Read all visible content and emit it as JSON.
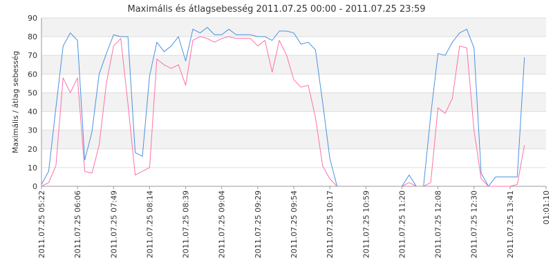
{
  "chart_data": {
    "type": "line",
    "title": "Maximális és átlagsebesség 2011.07.25 00:00 - 2011.07.25 23:59",
    "ylabel": "Maximális / átlag sebesség",
    "xlabel": "",
    "ylim": [
      0,
      90
    ],
    "yticks": [
      0,
      10,
      20,
      30,
      40,
      50,
      60,
      70,
      80,
      90
    ],
    "grid": "horizontal bands",
    "colors": {
      "max": "#4a90e2",
      "avg": "#ff6fa8",
      "band": "#f2f2f2",
      "grid": "#dddddd",
      "axis": "#999999"
    },
    "x_tick_labels": [
      "2011.07.25 05:22",
      "2011.07.25 06:06",
      "2011.07.25 07:49",
      "2011.07.25 08:14",
      "2011.07.25 08:39",
      "2011.07.25 09:04",
      "2011.07.25 09:29",
      "2011.07.25 09:54",
      "2011.07.25 10:17",
      "2011.07.25 10:59",
      "2011.07.25 11:20",
      "2011.07.25 12:08",
      "2011.07.25 12:30",
      "2011.07.25 13:41",
      "01:01:10"
    ],
    "series": [
      {
        "key": "max",
        "points": [
          [
            0,
            1
          ],
          [
            0.2,
            8
          ],
          [
            0.4,
            42
          ],
          [
            0.6,
            75
          ],
          [
            0.8,
            82
          ],
          [
            1.0,
            78
          ],
          [
            1.2,
            14
          ],
          [
            1.4,
            29
          ],
          [
            1.6,
            60
          ],
          [
            1.8,
            71
          ],
          [
            2.0,
            81
          ],
          [
            2.2,
            80
          ],
          [
            2.4,
            80
          ],
          [
            2.6,
            18
          ],
          [
            2.8,
            16
          ],
          [
            3.0,
            59
          ],
          [
            3.2,
            77
          ],
          [
            3.4,
            72
          ],
          [
            3.6,
            75
          ],
          [
            3.8,
            80
          ],
          [
            4.0,
            67
          ],
          [
            4.2,
            84
          ],
          [
            4.4,
            82
          ],
          [
            4.6,
            85
          ],
          [
            4.8,
            81
          ],
          [
            5.0,
            81
          ],
          [
            5.2,
            84
          ],
          [
            5.4,
            81
          ],
          [
            5.6,
            81
          ],
          [
            5.8,
            81
          ],
          [
            6.0,
            80
          ],
          [
            6.2,
            80
          ],
          [
            6.4,
            78
          ],
          [
            6.6,
            83
          ],
          [
            6.8,
            83
          ],
          [
            7.0,
            82
          ],
          [
            7.2,
            76
          ],
          [
            7.4,
            77
          ],
          [
            7.6,
            73
          ],
          [
            7.8,
            45
          ],
          [
            8.0,
            15
          ],
          [
            8.2,
            0
          ],
          null,
          [
            10.0,
            0
          ],
          [
            10.2,
            6
          ],
          [
            10.4,
            0
          ],
          null,
          [
            10.6,
            0
          ],
          [
            10.8,
            38
          ],
          [
            11.0,
            71
          ],
          [
            11.2,
            70
          ],
          [
            11.4,
            77
          ],
          [
            11.6,
            82
          ],
          [
            11.8,
            84
          ],
          [
            12.0,
            74
          ],
          [
            12.2,
            7
          ],
          [
            12.4,
            0
          ],
          [
            12.6,
            5
          ],
          [
            12.8,
            5
          ],
          [
            13.0,
            5
          ],
          [
            13.2,
            5
          ],
          [
            13.4,
            69
          ]
        ]
      },
      {
        "key": "avg",
        "points": [
          [
            0,
            0
          ],
          [
            0.2,
            2
          ],
          [
            0.4,
            11
          ],
          [
            0.6,
            58
          ],
          [
            0.8,
            50
          ],
          [
            1.0,
            58
          ],
          [
            1.2,
            8
          ],
          [
            1.4,
            7
          ],
          [
            1.6,
            22
          ],
          [
            1.8,
            55
          ],
          [
            2.0,
            75
          ],
          [
            2.2,
            79
          ],
          [
            2.4,
            44
          ],
          [
            2.6,
            6
          ],
          [
            2.8,
            8
          ],
          [
            3.0,
            10
          ],
          [
            3.2,
            68
          ],
          [
            3.4,
            65
          ],
          [
            3.6,
            63
          ],
          [
            3.8,
            65
          ],
          [
            4.0,
            54
          ],
          [
            4.2,
            78
          ],
          [
            4.4,
            80
          ],
          [
            4.6,
            79
          ],
          [
            4.8,
            77
          ],
          [
            5.0,
            79
          ],
          [
            5.2,
            80
          ],
          [
            5.4,
            79
          ],
          [
            5.6,
            79
          ],
          [
            5.8,
            79
          ],
          [
            6.0,
            75
          ],
          [
            6.2,
            78
          ],
          [
            6.4,
            61
          ],
          [
            6.6,
            78
          ],
          [
            6.8,
            70
          ],
          [
            7.0,
            57
          ],
          [
            7.2,
            53
          ],
          [
            7.4,
            54
          ],
          [
            7.6,
            37
          ],
          [
            7.8,
            11
          ],
          [
            8.0,
            4
          ],
          [
            8.2,
            0
          ],
          null,
          [
            10.0,
            0
          ],
          [
            10.2,
            2
          ],
          [
            10.4,
            0
          ],
          null,
          [
            10.6,
            0
          ],
          [
            10.8,
            2
          ],
          [
            11.0,
            42
          ],
          [
            11.2,
            39
          ],
          [
            11.4,
            47
          ],
          [
            11.6,
            75
          ],
          [
            11.8,
            74
          ],
          [
            12.0,
            30
          ],
          [
            12.2,
            4
          ],
          [
            12.4,
            0
          ],
          [
            12.6,
            0
          ],
          [
            12.8,
            0
          ],
          [
            13.0,
            0
          ],
          [
            13.2,
            1
          ],
          [
            13.4,
            22
          ]
        ]
      }
    ]
  }
}
